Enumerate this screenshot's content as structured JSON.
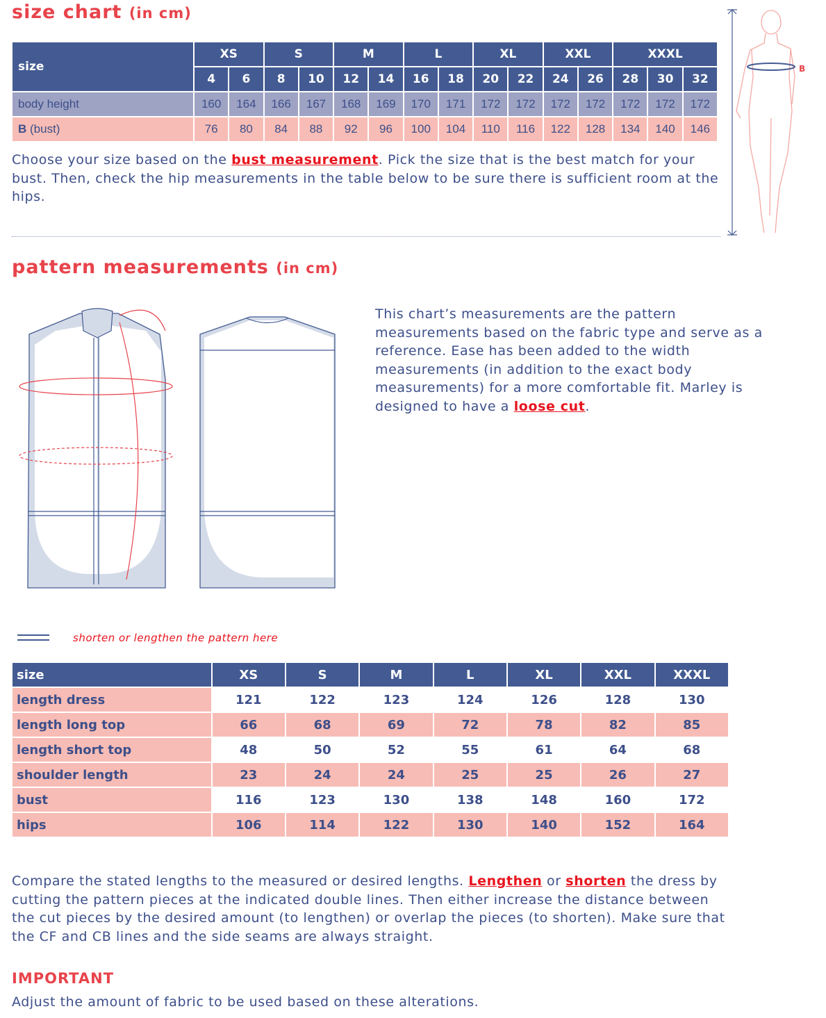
{
  "size_chart": {
    "title": "size chart",
    "unit": "(in cm)",
    "size_label": "size",
    "groups": [
      {
        "name": "XS",
        "sizes": [
          "4",
          "6"
        ],
        "height": [
          "160",
          "164"
        ],
        "bust": [
          "76",
          "80"
        ]
      },
      {
        "name": "S",
        "sizes": [
          "8",
          "10"
        ],
        "height": [
          "166",
          "167"
        ],
        "bust": [
          "84",
          "88"
        ]
      },
      {
        "name": "M",
        "sizes": [
          "12",
          "14"
        ],
        "height": [
          "168",
          "169"
        ],
        "bust": [
          "92",
          "96"
        ]
      },
      {
        "name": "L",
        "sizes": [
          "16",
          "18"
        ],
        "height": [
          "170",
          "171"
        ],
        "bust": [
          "100",
          "104"
        ]
      },
      {
        "name": "XL",
        "sizes": [
          "20",
          "22"
        ],
        "height": [
          "172",
          "172"
        ],
        "bust": [
          "110",
          "116"
        ]
      },
      {
        "name": "XXL",
        "sizes": [
          "24",
          "26"
        ],
        "height": [
          "172",
          "172"
        ],
        "bust": [
          "122",
          "128"
        ]
      },
      {
        "name": "XXXL",
        "sizes": [
          "28",
          "30",
          "32"
        ],
        "height": [
          "172",
          "172",
          "172"
        ],
        "bust": [
          "134",
          "140",
          "146"
        ]
      }
    ],
    "row_height": "body height",
    "row_bust_b": "B",
    "row_bust": "(bust)",
    "figure_label": "B",
    "text1": "Choose your size based on the ",
    "link": "bust measurement",
    "text2": ". Pick the size that is the best match for your bust. Then, check the hip measurements in the table below to be sure there is sufficient room at the hips."
  },
  "pattern": {
    "title": "pattern measurements",
    "unit": "(in cm)",
    "text1": "This chart’s measurements are the pattern measurements based on the fabric type and serve as a reference. Ease has been added to the width measurements (in addition to the exact body measurements) for a more comfortable fit. Marley is designed to have a ",
    "link": "loose cut",
    "text2": ".",
    "legend": "shorten or lengthen the pattern here",
    "header": [
      "size",
      "XS",
      "S",
      "M",
      "L",
      "XL",
      "XXL",
      "XXXL"
    ],
    "rows": [
      {
        "label": "length dress",
        "values": [
          "121",
          "122",
          "123",
          "124",
          "126",
          "128",
          "130"
        ]
      },
      {
        "label": "length long top",
        "values": [
          "66",
          "68",
          "69",
          "72",
          "78",
          "82",
          "85"
        ]
      },
      {
        "label": "length short top",
        "values": [
          "48",
          "50",
          "52",
          "55",
          "61",
          "64",
          "68"
        ]
      },
      {
        "label": "shoulder length",
        "values": [
          "23",
          "24",
          "24",
          "25",
          "25",
          "26",
          "27"
        ]
      },
      {
        "label": "bust",
        "values": [
          "116",
          "123",
          "130",
          "138",
          "148",
          "160",
          "172"
        ]
      },
      {
        "label": "hips",
        "values": [
          "106",
          "114",
          "122",
          "130",
          "140",
          "152",
          "164"
        ]
      }
    ]
  },
  "notes": {
    "t1": "Compare the stated lengths to the measured or desired lengths. ",
    "l1": "Lengthen",
    "t2": " or ",
    "l2": "shorten",
    "t3": " the dress by cutting the pattern pieces at the indicated double lines. Then either increase the distance between the cut pieces by the desired amount (to lengthen) or overlap the pieces (to shorten). Make sure that the CF and CB lines and the side seams are always straight.",
    "important": "IMPORTANT",
    "important_text": "Adjust the amount of fabric to be used based on these alterations."
  }
}
